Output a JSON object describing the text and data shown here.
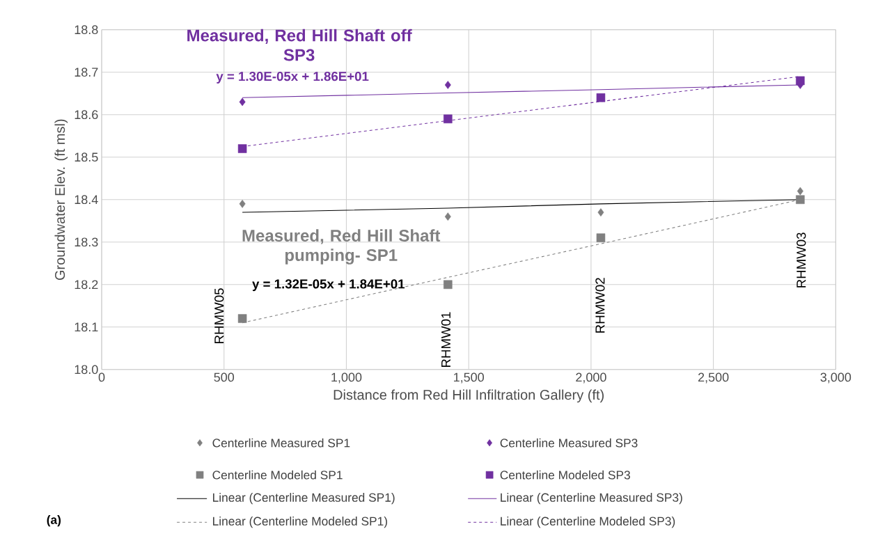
{
  "chart_data": {
    "type": "scatter",
    "xlabel": "Distance from Red Hill Infiltration Gallery (ft)",
    "ylabel": "Groundwater Elev. (ft msl)",
    "xlim": [
      0,
      3000
    ],
    "xticks": [
      0,
      500,
      {
        "value": 1000,
        "label": "1,000"
      },
      {
        "value": 1500,
        "label": "1,500"
      },
      {
        "value": 2000,
        "label": "2,000"
      },
      {
        "value": 2500,
        "label": "2,500"
      },
      {
        "value": 3000,
        "label": "3,000"
      }
    ],
    "ylim": [
      18.0,
      18.8
    ],
    "yticks": [
      {
        "value": 18.0,
        "label": "18.0"
      },
      18.1,
      18.2,
      18.3,
      18.4,
      18.5,
      18.6,
      18.7,
      18.8
    ],
    "grid": true,
    "legend": "bottom",
    "x": [
      575,
      1415,
      2040,
      2855
    ],
    "series": [
      {
        "name": "Centerline Measured SP1",
        "marker": "diamond",
        "color": "#808080",
        "values": [
          18.39,
          18.36,
          18.37,
          18.42
        ]
      },
      {
        "name": "Centerline Measured SP3",
        "marker": "diamond",
        "color": "#7030a0",
        "values": [
          18.63,
          18.67,
          null,
          18.67
        ]
      },
      {
        "name": "Centerline Modeled SP1",
        "marker": "square",
        "color": "#808080",
        "values": [
          18.12,
          18.2,
          18.31,
          18.4
        ]
      },
      {
        "name": "Centerline Modeled SP3",
        "marker": "square",
        "color": "#7030a0",
        "values": [
          18.52,
          18.59,
          18.64,
          18.68
        ]
      },
      {
        "name": "Linear (Centerline Measured SP1)",
        "type": "line",
        "line_style": "solid",
        "color": "#000000",
        "values": [
          18.37,
          18.38,
          18.39,
          18.4
        ]
      },
      {
        "name": "Linear (Centerline Measured SP3)",
        "type": "line",
        "line_style": "solid",
        "color": "#7030a0",
        "values": [
          18.64,
          18.651,
          18.659,
          18.67
        ]
      },
      {
        "name": "Linear (Centerline Modeled SP1)",
        "type": "line",
        "line_style": "dashed",
        "color": "#808080",
        "values": [
          18.11,
          18.217,
          18.296,
          18.4
        ]
      },
      {
        "name": "Linear (Centerline Modeled SP3)",
        "type": "line",
        "line_style": "dashed",
        "color": "#7030a0",
        "values": [
          18.525,
          18.586,
          18.631,
          18.69
        ]
      }
    ],
    "annotations": [
      "RHMW05",
      "RHMW01",
      "RHMW02",
      "RHMW03",
      "Measured, Red Hill Shaft off SP3",
      "y = 1.30E-05x + 1.86E+01",
      "Measured, Red Hill Shaft pumping- SP1",
      "y = 1.32E-05x + 1.84E+01",
      "(a)"
    ]
  }
}
